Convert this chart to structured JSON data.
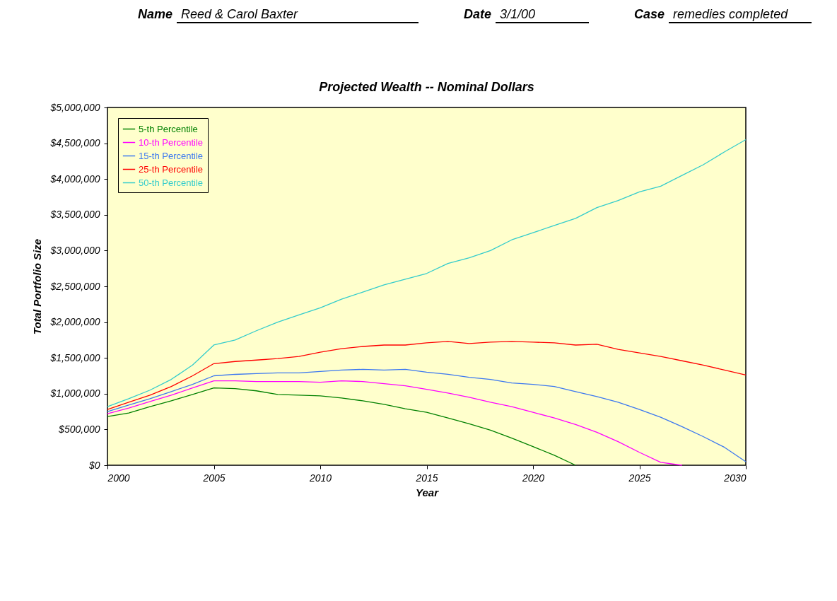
{
  "chart_data": {
    "type": "line",
    "title": "Projected Wealth -- Nominal Dollars",
    "xlabel": "Year",
    "ylabel": "Total Portfolio Size",
    "annotations": [
      "Name",
      "Reed & Carol Baxter",
      "Date",
      "3/1/00",
      "Case",
      "remedies completed"
    ],
    "x": [
      2000,
      2001,
      2002,
      2003,
      2004,
      2005,
      2006,
      2007,
      2008,
      2009,
      2010,
      2011,
      2012,
      2013,
      2014,
      2015,
      2016,
      2017,
      2018,
      2019,
      2020,
      2021,
      2022,
      2023,
      2024,
      2025,
      2026,
      2027,
      2028,
      2029,
      2030
    ],
    "series": [
      {
        "name": "5-th Percentile",
        "color": "#008000",
        "values": [
          680000,
          730000,
          820000,
          900000,
          990000,
          1080000,
          1070000,
          1040000,
          990000,
          980000,
          970000,
          940000,
          900000,
          850000,
          790000,
          740000,
          660000,
          580000,
          490000,
          380000,
          260000,
          140000,
          0,
          null,
          null,
          null,
          null,
          null,
          null,
          null,
          null
        ]
      },
      {
        "name": "10-th Percentile",
        "color": "#ff00ff",
        "values": [
          720000,
          800000,
          890000,
          980000,
          1080000,
          1180000,
          1180000,
          1170000,
          1170000,
          1170000,
          1160000,
          1180000,
          1170000,
          1140000,
          1110000,
          1060000,
          1010000,
          950000,
          880000,
          820000,
          740000,
          660000,
          570000,
          460000,
          330000,
          180000,
          40000,
          0,
          null,
          null,
          null
        ]
      },
      {
        "name": "15-th Percentile",
        "color": "#3c78f0",
        "values": [
          750000,
          840000,
          930000,
          1030000,
          1130000,
          1250000,
          1270000,
          1280000,
          1290000,
          1290000,
          1310000,
          1330000,
          1340000,
          1330000,
          1340000,
          1300000,
          1270000,
          1230000,
          1200000,
          1150000,
          1130000,
          1100000,
          1030000,
          960000,
          880000,
          780000,
          670000,
          540000,
          400000,
          250000,
          50000
        ]
      },
      {
        "name": "25-th Percentile",
        "color": "#ff0000",
        "values": [
          780000,
          880000,
          980000,
          1100000,
          1250000,
          1420000,
          1450000,
          1470000,
          1490000,
          1520000,
          1580000,
          1630000,
          1660000,
          1680000,
          1680000,
          1710000,
          1730000,
          1700000,
          1720000,
          1730000,
          1720000,
          1710000,
          1680000,
          1690000,
          1620000,
          1570000,
          1520000,
          1460000,
          1400000,
          1330000,
          1260000
        ]
      },
      {
        "name": "50-th Percentile",
        "color": "#33cccc",
        "values": [
          820000,
          930000,
          1050000,
          1200000,
          1400000,
          1680000,
          1750000,
          1880000,
          2000000,
          2100000,
          2200000,
          2320000,
          2420000,
          2520000,
          2600000,
          2680000,
          2820000,
          2900000,
          3000000,
          3150000,
          3250000,
          3350000,
          3450000,
          3600000,
          3700000,
          3820000,
          3900000,
          4050000,
          4200000,
          4380000,
          4550000
        ]
      }
    ],
    "xlim": [
      2000,
      2030
    ],
    "xticks": [
      2000,
      2005,
      2010,
      2015,
      2020,
      2025,
      2030
    ],
    "ylim": [
      0,
      5000000
    ],
    "yticks": [
      {
        "value": 0,
        "label": "$0"
      },
      {
        "value": 500000,
        "label": "$500,000"
      },
      {
        "value": 1000000,
        "label": "$1,000,000"
      },
      {
        "value": 1500000,
        "label": "$1,500,000"
      },
      {
        "value": 2000000,
        "label": "$2,000,000"
      },
      {
        "value": 2500000,
        "label": "$2,500,000"
      },
      {
        "value": 3000000,
        "label": "$3,000,000"
      },
      {
        "value": 3500000,
        "label": "$3,500,000"
      },
      {
        "value": 4000000,
        "label": "$4,000,000"
      },
      {
        "value": 4500000,
        "label": "$4,500,000"
      },
      {
        "value": 5000000,
        "label": "$5,000,000"
      }
    ],
    "grid": false,
    "legend": "top left",
    "line_style": "solid"
  }
}
